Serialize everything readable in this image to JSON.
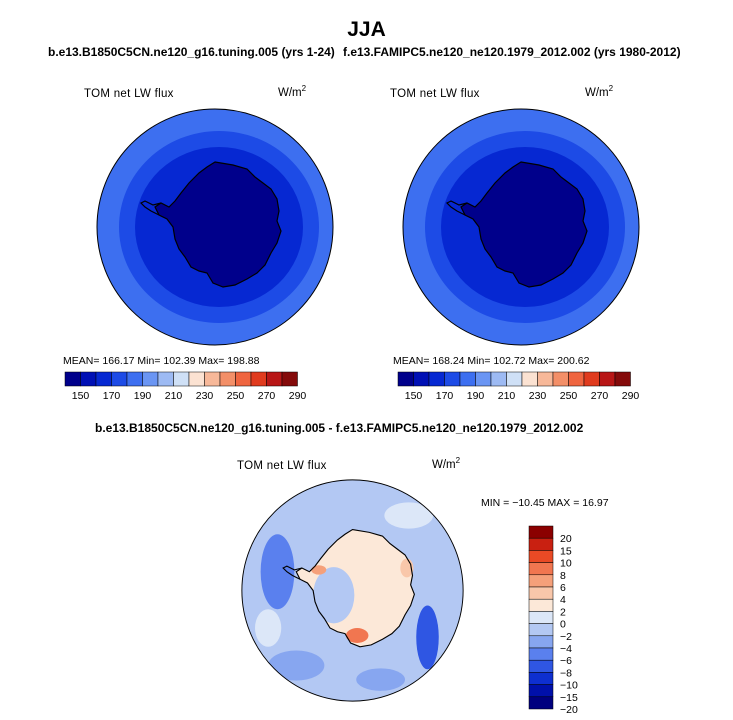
{
  "title": "JJA",
  "colors": {
    "abs_scale": [
      "#00008b",
      "#0010b5",
      "#0628d2",
      "#1d4be6",
      "#3d6ff0",
      "#6a95f3",
      "#9dbaf3",
      "#cfe0f6",
      "#fbe2d2",
      "#f7b899",
      "#f38f68",
      "#ef6540",
      "#e03b1e",
      "#b81616",
      "#840a0a"
    ],
    "diff_scale": [
      "#00007f",
      "#0010aa",
      "#0e2fd0",
      "#2f56e3",
      "#5a80ee",
      "#87a6f0",
      "#b3c8f3",
      "#dce7f8",
      "#fce8d8",
      "#f9c7aa",
      "#f5a07a",
      "#f17650",
      "#e94a25",
      "#c92011",
      "#8b0000"
    ],
    "coast": "#000000"
  },
  "panels": [
    {
      "case_title": "b.e13.B1850C5CN.ne120_g16.tuning.005 (yrs 1-24)",
      "label": "TOM net LW flux",
      "units_base": "W/m",
      "units_exp": "2",
      "stats": "MEAN= 166.17   Min= 102.39   Max= 198.88"
    },
    {
      "case_title": "f.e13.FAMIPC5.ne120_ne120.1979_2012.002 (yrs 1980-2012)",
      "label": "TOM net LW flux",
      "units_base": "W/m",
      "units_exp": "2",
      "stats": "MEAN= 168.24   Min= 102.72   Max= 200.62"
    }
  ],
  "diff_panel": {
    "case_title": "b.e13.B1850C5CN.ne120_g16.tuning.005 - f.e13.FAMIPC5.ne120_ne120.1979_2012.002",
    "label": "TOM net LW flux",
    "units_base": "W/m",
    "units_exp": "2",
    "stats": "MIN = −10.45  MAX =   16.97"
  },
  "chart_data": [
    {
      "type": "heatmap",
      "projection": "south polar stereographic",
      "title": "TOM net LW flux",
      "units": "W/m2",
      "colorbar_ticks": [
        "150",
        "170",
        "190",
        "210",
        "230",
        "250",
        "270",
        "290"
      ],
      "colorbar_levels": [
        140,
        150,
        160,
        170,
        180,
        190,
        200,
        210,
        220,
        230,
        240,
        250,
        260,
        270,
        280,
        290,
        300
      ],
      "stats": {
        "mean": 166.17,
        "min": 102.39,
        "max": 198.88
      },
      "zones": [
        {
          "region": "outer ocean",
          "value": 185
        },
        {
          "region": "mid ring",
          "value": 175
        },
        {
          "region": "sea-ice ring",
          "value": 165
        },
        {
          "region": "antarctic continent",
          "value": 140
        }
      ]
    },
    {
      "type": "heatmap",
      "projection": "south polar stereographic",
      "title": "TOM net LW flux",
      "units": "W/m2",
      "colorbar_ticks": [
        "150",
        "170",
        "190",
        "210",
        "230",
        "250",
        "270",
        "290"
      ],
      "colorbar_levels": [
        140,
        150,
        160,
        170,
        180,
        190,
        200,
        210,
        220,
        230,
        240,
        250,
        260,
        270,
        280,
        290,
        300
      ],
      "stats": {
        "mean": 168.24,
        "min": 102.72,
        "max": 200.62
      },
      "zones": [
        {
          "region": "outer ocean",
          "value": 187
        },
        {
          "region": "mid ring",
          "value": 177
        },
        {
          "region": "sea-ice ring",
          "value": 167
        },
        {
          "region": "antarctic continent",
          "value": 140
        }
      ]
    },
    {
      "type": "heatmap",
      "projection": "south polar stereographic",
      "title": "TOM net LW flux",
      "units": "W/m2",
      "colorbar_ticks": [
        "20",
        "15",
        "10",
        "8",
        "6",
        "4",
        "2",
        "0",
        "−2",
        "−4",
        "−6",
        "−8",
        "−10",
        "−15",
        "−20"
      ],
      "stats": {
        "min": -10.45,
        "max": 16.97
      }
    }
  ]
}
